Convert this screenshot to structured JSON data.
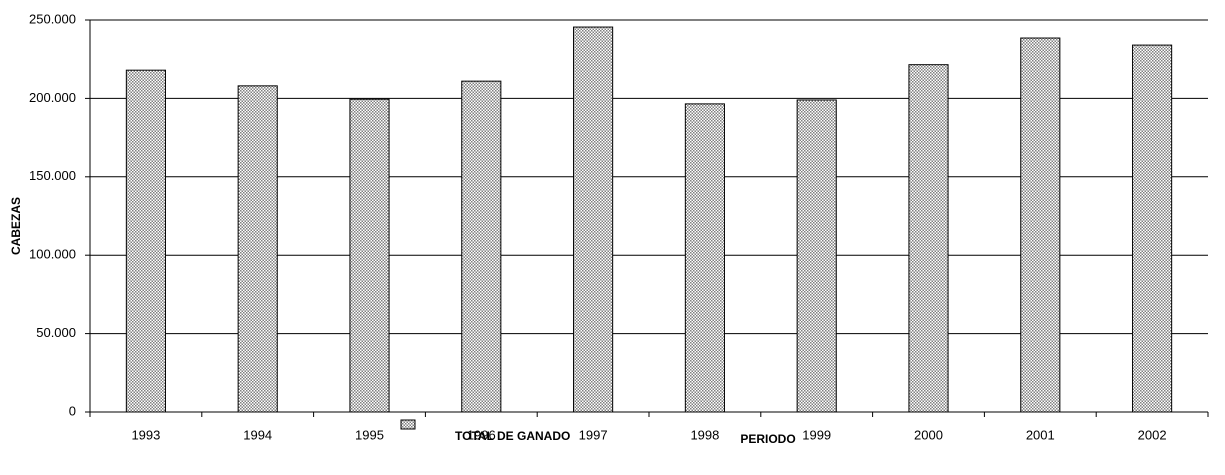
{
  "chart_data": {
    "type": "bar",
    "x_label": "PERIODO",
    "y_label": "CABEZAS",
    "categories": [
      "1993",
      "1994",
      "1995",
      "1996",
      "1997",
      "1998",
      "1999",
      "2000",
      "2001",
      "2002"
    ],
    "series": [
      {
        "name": "TOTAL DE GANADO",
        "color": "#808080",
        "values": [
          218000,
          208000,
          199500,
          211000,
          245500,
          196500,
          199000,
          221500,
          238500,
          234000
        ]
      }
    ],
    "ylim": [
      0,
      250000
    ],
    "yticks": [
      0,
      {
        "value": 50000,
        "label": "50.000"
      },
      {
        "value": 100000,
        "label": "100.000"
      },
      {
        "value": 150000,
        "label": "150.000"
      },
      {
        "value": 200000,
        "label": "200.000"
      },
      {
        "value": 250000,
        "label": "250.000"
      }
    ],
    "grid": true,
    "legend": "bottom"
  }
}
